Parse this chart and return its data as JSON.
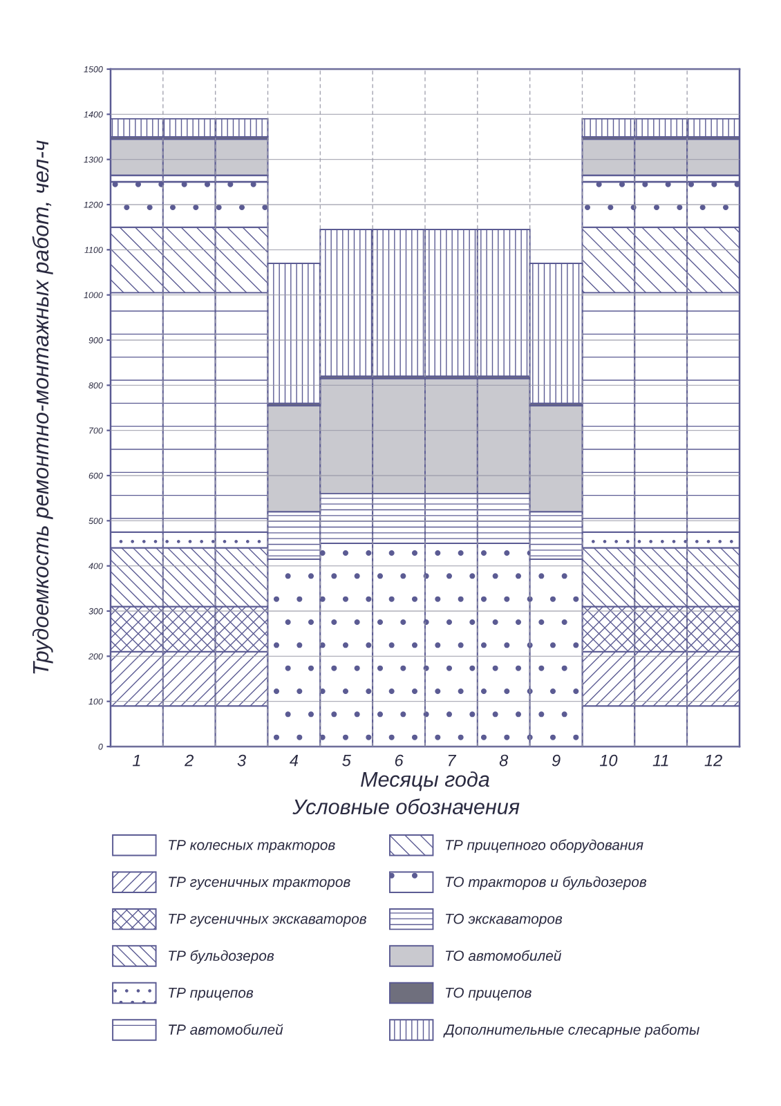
{
  "chart_data": {
    "type": "bar",
    "stacked": true,
    "xlabel": "Месяцы года",
    "ylabel": "Трудоемкость ремонтно-монтажных работ, чел-ч",
    "legend_title": "Условные обозначения",
    "legend": "bottom",
    "grid": true,
    "categories": [
      "1",
      "2",
      "3",
      "4",
      "5",
      "6",
      "7",
      "8",
      "9",
      "10",
      "11",
      "12"
    ],
    "ylim": [
      0,
      1500
    ],
    "yticks": [
      0,
      100,
      200,
      300,
      400,
      500,
      600,
      700,
      800,
      900,
      1000,
      1100,
      1200,
      1300,
      1400,
      1500
    ],
    "series": [
      {
        "name": "ТР колесных тракторов",
        "color": "#ffffff",
        "values": [
          90,
          90,
          90,
          null,
          null,
          null,
          null,
          null,
          null,
          90,
          90,
          90
        ]
      },
      {
        "name": "ТР гусеничных тракторов",
        "color": "#5b5b93",
        "values": [
          120,
          120,
          120,
          null,
          null,
          null,
          null,
          null,
          null,
          120,
          120,
          120
        ]
      },
      {
        "name": "ТР гусеничных экскаваторов",
        "color": "#5b5b93",
        "values": [
          100,
          100,
          100,
          null,
          null,
          null,
          null,
          null,
          null,
          100,
          100,
          100
        ]
      },
      {
        "name": "ТР бульдозеров",
        "color": "#5b5b93",
        "values": [
          130,
          130,
          130,
          null,
          null,
          null,
          null,
          null,
          null,
          130,
          130,
          130
        ]
      },
      {
        "name": "ТР прицепов",
        "color": "#5b5b93",
        "values": [
          35,
          35,
          35,
          null,
          null,
          null,
          null,
          null,
          null,
          35,
          35,
          35
        ]
      },
      {
        "name": "ТР автомобилей",
        "color": "#5b5b93",
        "values": [
          530,
          530,
          530,
          null,
          null,
          null,
          null,
          null,
          null,
          530,
          530,
          530
        ]
      },
      {
        "name": "ТР прицепного оборудования",
        "color": "#5b5b93",
        "values": [
          145,
          145,
          145,
          null,
          null,
          null,
          null,
          null,
          null,
          145,
          145,
          145
        ]
      },
      {
        "name": "ТО тракторов и бульдозеров",
        "color": "#5b5b93",
        "values": [
          100,
          100,
          100,
          415,
          450,
          450,
          450,
          450,
          415,
          100,
          100,
          100
        ]
      },
      {
        "name": "ТО экскаваторов",
        "color": "#5b5b93",
        "values": [
          15,
          15,
          15,
          105,
          110,
          110,
          110,
          110,
          105,
          15,
          15,
          15
        ]
      },
      {
        "name": "ТО автомобилей",
        "color": "#c9c9cf",
        "values": [
          80,
          80,
          80,
          235,
          255,
          255,
          255,
          255,
          235,
          80,
          80,
          80
        ]
      },
      {
        "name": "ТО прицепов",
        "color": "#6f6f7d",
        "values": [
          5,
          5,
          5,
          5,
          5,
          5,
          5,
          5,
          5,
          5,
          5,
          5
        ]
      },
      {
        "name": "Дополнительные слесарные работы",
        "color": "#5b5b93",
        "values": [
          40,
          40,
          40,
          310,
          325,
          325,
          325,
          325,
          310,
          40,
          40,
          40
        ]
      }
    ]
  }
}
